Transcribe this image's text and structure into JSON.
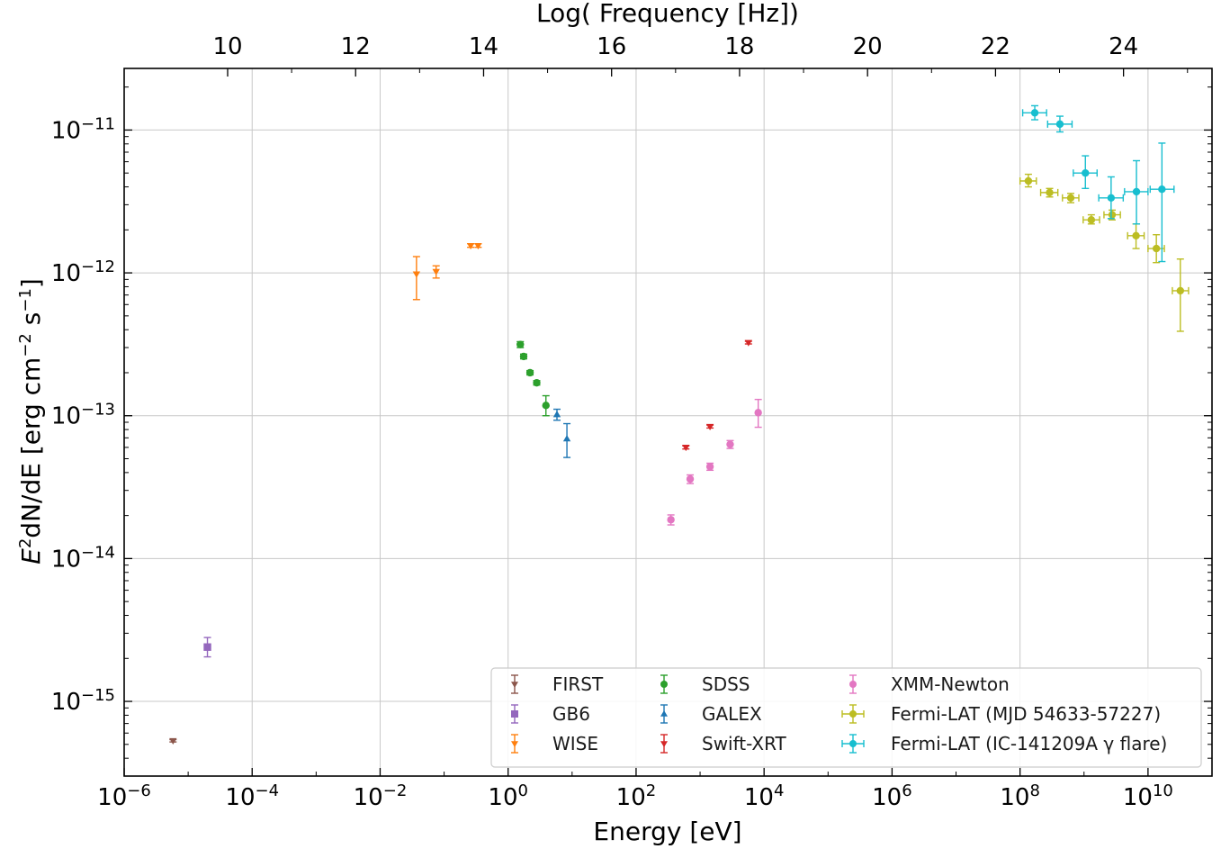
{
  "chart_data": {
    "type": "scatter",
    "title": "",
    "xlabel": "Energy [eV]",
    "xlabel_top": "Log( Frequency [Hz])",
    "ylabel_main": "E",
    "ylabel_rest": "dN/dE [erg cm",
    "ylabel_end": " s",
    "x_scale": "log",
    "y_scale": "log",
    "xlim": [
      1e-06,
      100000000000.0
    ],
    "ylim": [
      3e-16,
      2.7e-11
    ],
    "grid": true,
    "legend_position": "lower-right",
    "x_ticks": [
      {
        "value": 1e-06,
        "base": "10",
        "exp": "−6"
      },
      {
        "value": 0.0001,
        "base": "10",
        "exp": "−4"
      },
      {
        "value": 0.01,
        "base": "10",
        "exp": "−2"
      },
      {
        "value": 1,
        "base": "10",
        "exp": "0"
      },
      {
        "value": 100.0,
        "base": "10",
        "exp": "2"
      },
      {
        "value": 10000.0,
        "base": "10",
        "exp": "4"
      },
      {
        "value": 1000000.0,
        "base": "10",
        "exp": "6"
      },
      {
        "value": 100000000.0,
        "base": "10",
        "exp": "8"
      },
      {
        "value": 10000000000.0,
        "base": "10",
        "exp": "10"
      }
    ],
    "y_ticks": [
      {
        "value": 1e-15,
        "base": "10",
        "exp": "−15"
      },
      {
        "value": 1e-14,
        "base": "10",
        "exp": "−14"
      },
      {
        "value": 1e-13,
        "base": "10",
        "exp": "−13"
      },
      {
        "value": 1e-12,
        "base": "10",
        "exp": "−12"
      },
      {
        "value": 1e-11,
        "base": "10",
        "exp": "−11"
      }
    ],
    "top_ticks": [
      {
        "value": 10,
        "label": "10"
      },
      {
        "value": 12,
        "label": "12"
      },
      {
        "value": 14,
        "label": "14"
      },
      {
        "value": 16,
        "label": "16"
      },
      {
        "value": 18,
        "label": "18"
      },
      {
        "value": 20,
        "label": "20"
      },
      {
        "value": 22,
        "label": "22"
      },
      {
        "value": 24,
        "label": "24"
      }
    ],
    "series": [
      {
        "name": "FIRST",
        "color": "#8c564b",
        "marker": "triangle-down",
        "points": [
          {
            "x": 5.8e-06,
            "y": 5.3e-16,
            "ylo": 5.2e-16,
            "yhi": 5.4e-16
          }
        ]
      },
      {
        "name": "GB6",
        "color": "#9467bd",
        "marker": "square",
        "points": [
          {
            "x": 2e-05,
            "y": 2.4e-15,
            "ylo": 2.05e-15,
            "yhi": 2.8e-15
          }
        ]
      },
      {
        "name": "WISE",
        "color": "#ff7f0e",
        "marker": "triangle-down",
        "points": [
          {
            "x": 0.037,
            "y": 9.8e-13,
            "ylo": 6.5e-13,
            "yhi": 1.3e-12
          },
          {
            "x": 0.075,
            "y": 1.02e-12,
            "ylo": 9.2e-13,
            "yhi": 1.12e-12
          },
          {
            "x": 0.26,
            "y": 1.55e-12,
            "ylo": 1.51e-12,
            "yhi": 1.6e-12
          },
          {
            "x": 0.34,
            "y": 1.55e-12,
            "ylo": 1.51e-12,
            "yhi": 1.6e-12
          }
        ]
      },
      {
        "name": "SDSS",
        "color": "#2ca02c",
        "marker": "circle",
        "points": [
          {
            "x": 1.55,
            "y": 3.15e-13,
            "ylo": 3e-13,
            "yhi": 3.3e-13
          },
          {
            "x": 1.75,
            "y": 2.6e-13,
            "ylo": 2.5e-13,
            "yhi": 2.7e-13
          },
          {
            "x": 2.2,
            "y": 2e-13,
            "ylo": 1.93e-13,
            "yhi": 2.07e-13
          },
          {
            "x": 2.8,
            "y": 1.7e-13,
            "ylo": 1.64e-13,
            "yhi": 1.76e-13
          },
          {
            "x": 3.9,
            "y": 1.18e-13,
            "ylo": 1e-13,
            "yhi": 1.38e-13
          }
        ]
      },
      {
        "name": "GALEX",
        "color": "#1f77b4",
        "marker": "triangle-up",
        "points": [
          {
            "x": 5.8,
            "y": 1.02e-13,
            "ylo": 9.3e-14,
            "yhi": 1.11e-13
          },
          {
            "x": 8.3,
            "y": 6.9e-14,
            "ylo": 5.1e-14,
            "yhi": 8.8e-14
          }
        ]
      },
      {
        "name": "Swift-XRT",
        "color": "#d62728",
        "marker": "triangle-down",
        "points": [
          {
            "x": 600,
            "y": 6e-14,
            "ylo": 5.85e-14,
            "yhi": 6.15e-14
          },
          {
            "x": 1430,
            "y": 8.4e-14,
            "ylo": 8.2e-14,
            "yhi": 8.6e-14
          },
          {
            "x": 5700,
            "y": 3.25e-13,
            "ylo": 3.18e-13,
            "yhi": 3.32e-13
          }
        ]
      },
      {
        "name": "XMM-Newton",
        "color": "#e377c2",
        "marker": "circle",
        "points": [
          {
            "x": 350,
            "y": 1.87e-14,
            "ylo": 1.72e-14,
            "yhi": 2.02e-14
          },
          {
            "x": 700,
            "y": 3.6e-14,
            "ylo": 3.35e-14,
            "yhi": 3.85e-14
          },
          {
            "x": 1430,
            "y": 4.4e-14,
            "ylo": 4.15e-14,
            "yhi": 4.65e-14
          },
          {
            "x": 2950,
            "y": 6.3e-14,
            "ylo": 5.9e-14,
            "yhi": 6.7e-14
          },
          {
            "x": 8100,
            "y": 1.05e-13,
            "ylo": 8.3e-14,
            "yhi": 1.3e-13
          }
        ]
      },
      {
        "name": "Fermi-LAT (MJD 54633-57227)",
        "color": "#bcbd22",
        "marker": "circle",
        "points": [
          {
            "x": 135000000.0,
            "y": 4.4e-12,
            "ylo": 4e-12,
            "yhi": 4.9e-12,
            "xlo": 100000000.0,
            "xhi": 180000000.0
          },
          {
            "x": 290000000.0,
            "y": 3.65e-12,
            "ylo": 3.4e-12,
            "yhi": 3.9e-12,
            "xlo": 210000000.0,
            "xhi": 390000000.0
          },
          {
            "x": 620000000.0,
            "y": 3.35e-12,
            "ylo": 3.1e-12,
            "yhi": 3.6e-12,
            "xlo": 460000000.0,
            "xhi": 830000000.0
          },
          {
            "x": 1300000000.0,
            "y": 2.35e-12,
            "ylo": 2.2e-12,
            "yhi": 2.55e-12,
            "xlo": 970000000.0,
            "xhi": 1750000000.0
          },
          {
            "x": 2750000000.0,
            "y": 2.55e-12,
            "ylo": 2.35e-12,
            "yhi": 2.75e-12,
            "xlo": 2050000000.0,
            "xhi": 3700000000.0
          },
          {
            "x": 6500000000.0,
            "y": 1.82e-12,
            "ylo": 1.48e-12,
            "yhi": 2.2e-12,
            "xlo": 4800000000.0,
            "xhi": 8700000000.0
          },
          {
            "x": 13500000000.0,
            "y": 1.48e-12,
            "ylo": 1.18e-12,
            "yhi": 1.85e-12,
            "xlo": 10000000000.0,
            "xhi": 18000000000.0
          },
          {
            "x": 32000000000.0,
            "y": 7.5e-13,
            "ylo": 3.9e-13,
            "yhi": 1.25e-12,
            "xlo": 24000000000.0,
            "xhi": 43000000000.0
          }
        ]
      },
      {
        "name": "Fermi-LAT (IC-141209A γ flare)",
        "color": "#17becf",
        "marker": "circle",
        "points": [
          {
            "x": 170000000.0,
            "y": 1.32e-11,
            "ylo": 1.18e-11,
            "yhi": 1.48e-11,
            "xlo": 110000000.0,
            "xhi": 260000000.0
          },
          {
            "x": 420000000.0,
            "y": 1.1e-11,
            "ylo": 9.7e-12,
            "yhi": 1.25e-11,
            "xlo": 270000000.0,
            "xhi": 650000000.0
          },
          {
            "x": 1050000000.0,
            "y": 5e-12,
            "ylo": 3.9e-12,
            "yhi": 6.6e-12,
            "xlo": 680000000.0,
            "xhi": 1600000000.0
          },
          {
            "x": 2650000000.0,
            "y": 3.35e-12,
            "ylo": 2.4e-12,
            "yhi": 4.7e-12,
            "xlo": 1700000000.0,
            "xhi": 4100000000.0
          },
          {
            "x": 6600000000.0,
            "y": 3.7e-12,
            "ylo": 2.2e-12,
            "yhi": 6.1e-12,
            "xlo": 4300000000.0,
            "xhi": 10000000000.0
          },
          {
            "x": 16500000000.0,
            "y": 3.85e-12,
            "ylo": 1.2e-12,
            "yhi": 8.1e-12,
            "xlo": 10800000000.0,
            "xhi": 25500000000.0
          }
        ]
      }
    ]
  }
}
